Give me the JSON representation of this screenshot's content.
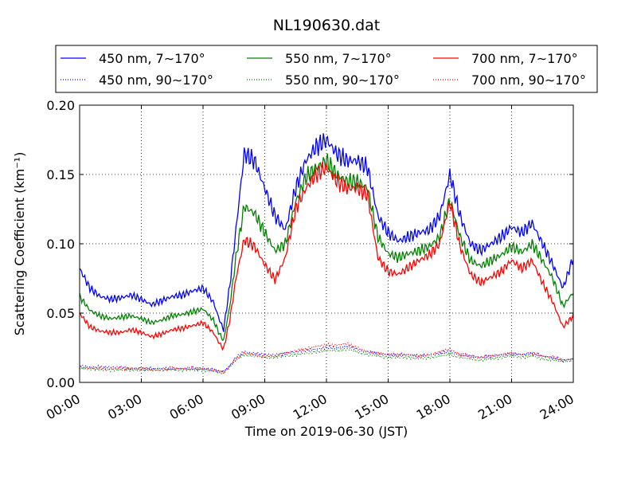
{
  "chart_data": {
    "type": "line",
    "title": "NL190630.dat",
    "xlabel": "Time on 2019-06-30 (JST)",
    "ylabel": "Scattering Coefficient (km⁻¹)",
    "xlim": [
      "00:00",
      "24:00"
    ],
    "ylim": [
      0,
      0.2
    ],
    "grid": true,
    "legend_position": "top",
    "x_ticks": [
      "00:00",
      "03:00",
      "06:00",
      "09:00",
      "12:00",
      "15:00",
      "18:00",
      "21:00",
      "24:00"
    ],
    "y_ticks": [
      "0.00",
      "0.05",
      "0.10",
      "0.15",
      "0.20"
    ],
    "x_hours": [
      0,
      0.5,
      1,
      1.5,
      2,
      2.5,
      3,
      3.5,
      4,
      4.5,
      5,
      5.5,
      6,
      6.5,
      6.8,
      7,
      7.3,
      7.6,
      8,
      8.5,
      9,
      9.5,
      10,
      10.5,
      11,
      11.5,
      12,
      12.5,
      13,
      13.5,
      14,
      14.5,
      15,
      15.5,
      16,
      16.5,
      17,
      17.5,
      18,
      18.5,
      19,
      19.5,
      20,
      20.5,
      21,
      21.5,
      22,
      22.5,
      23,
      23.5,
      24
    ],
    "series": [
      {
        "name": "450 nm, 7∼170°",
        "color": "#0000ff",
        "style": "solid",
        "values": [
          0.082,
          0.068,
          0.062,
          0.06,
          0.061,
          0.063,
          0.06,
          0.056,
          0.059,
          0.062,
          0.063,
          0.066,
          0.068,
          0.058,
          0.045,
          0.038,
          0.07,
          0.11,
          0.165,
          0.16,
          0.14,
          0.12,
          0.11,
          0.14,
          0.16,
          0.17,
          0.175,
          0.165,
          0.16,
          0.16,
          0.155,
          0.12,
          0.108,
          0.102,
          0.105,
          0.108,
          0.11,
          0.12,
          0.15,
          0.12,
          0.1,
          0.095,
          0.1,
          0.105,
          0.112,
          0.108,
          0.115,
          0.1,
          0.085,
          0.068,
          0.09
        ]
      },
      {
        "name": "550 nm, 7∼170°",
        "color": "#008000",
        "style": "solid",
        "values": [
          0.062,
          0.052,
          0.048,
          0.046,
          0.047,
          0.048,
          0.046,
          0.043,
          0.045,
          0.048,
          0.049,
          0.051,
          0.053,
          0.045,
          0.035,
          0.03,
          0.055,
          0.09,
          0.127,
          0.122,
          0.108,
          0.095,
          0.1,
          0.13,
          0.148,
          0.155,
          0.16,
          0.15,
          0.145,
          0.145,
          0.14,
          0.105,
          0.093,
          0.09,
          0.093,
          0.095,
          0.098,
          0.105,
          0.132,
          0.105,
          0.088,
          0.084,
          0.088,
          0.092,
          0.098,
          0.094,
          0.1,
          0.088,
          0.075,
          0.055,
          0.065
        ]
      },
      {
        "name": "700 nm, 7∼170°",
        "color": "#ff0000",
        "style": "solid",
        "values": [
          0.05,
          0.04,
          0.037,
          0.036,
          0.036,
          0.038,
          0.036,
          0.033,
          0.035,
          0.038,
          0.039,
          0.041,
          0.043,
          0.036,
          0.028,
          0.024,
          0.045,
          0.075,
          0.103,
          0.098,
          0.085,
          0.074,
          0.09,
          0.125,
          0.14,
          0.15,
          0.155,
          0.145,
          0.14,
          0.14,
          0.135,
          0.09,
          0.08,
          0.078,
          0.083,
          0.088,
          0.092,
          0.1,
          0.13,
          0.098,
          0.078,
          0.072,
          0.076,
          0.08,
          0.088,
          0.082,
          0.088,
          0.072,
          0.058,
          0.04,
          0.048
        ]
      },
      {
        "name": "450 nm, 90∼170°",
        "color": "#0000ff",
        "style": "dotted",
        "values": [
          0.012,
          0.011,
          0.011,
          0.011,
          0.011,
          0.01,
          0.01,
          0.01,
          0.01,
          0.01,
          0.01,
          0.01,
          0.01,
          0.009,
          0.008,
          0.008,
          0.012,
          0.018,
          0.022,
          0.021,
          0.02,
          0.02,
          0.021,
          0.022,
          0.023,
          0.024,
          0.025,
          0.025,
          0.026,
          0.024,
          0.022,
          0.021,
          0.02,
          0.02,
          0.02,
          0.019,
          0.02,
          0.021,
          0.022,
          0.02,
          0.019,
          0.018,
          0.019,
          0.02,
          0.021,
          0.02,
          0.021,
          0.019,
          0.018,
          0.016,
          0.017
        ]
      },
      {
        "name": "550 nm, 90∼170°",
        "color": "#008000",
        "style": "dotted",
        "values": [
          0.01,
          0.01,
          0.009,
          0.009,
          0.009,
          0.009,
          0.009,
          0.009,
          0.009,
          0.009,
          0.009,
          0.009,
          0.009,
          0.008,
          0.007,
          0.007,
          0.011,
          0.016,
          0.02,
          0.019,
          0.018,
          0.018,
          0.019,
          0.02,
          0.021,
          0.022,
          0.023,
          0.023,
          0.024,
          0.022,
          0.02,
          0.019,
          0.018,
          0.018,
          0.018,
          0.017,
          0.018,
          0.019,
          0.02,
          0.018,
          0.017,
          0.016,
          0.017,
          0.018,
          0.019,
          0.018,
          0.019,
          0.017,
          0.016,
          0.015,
          0.016
        ]
      },
      {
        "name": "700 nm, 90∼170°",
        "color": "#ff0000",
        "style": "dotted",
        "values": [
          0.011,
          0.01,
          0.01,
          0.01,
          0.01,
          0.01,
          0.01,
          0.009,
          0.009,
          0.01,
          0.01,
          0.01,
          0.01,
          0.009,
          0.008,
          0.007,
          0.012,
          0.017,
          0.021,
          0.02,
          0.019,
          0.019,
          0.021,
          0.023,
          0.024,
          0.026,
          0.027,
          0.027,
          0.028,
          0.025,
          0.022,
          0.021,
          0.02,
          0.02,
          0.02,
          0.019,
          0.02,
          0.022,
          0.024,
          0.02,
          0.019,
          0.018,
          0.019,
          0.02,
          0.021,
          0.02,
          0.021,
          0.019,
          0.018,
          0.016,
          0.017
        ]
      }
    ]
  }
}
